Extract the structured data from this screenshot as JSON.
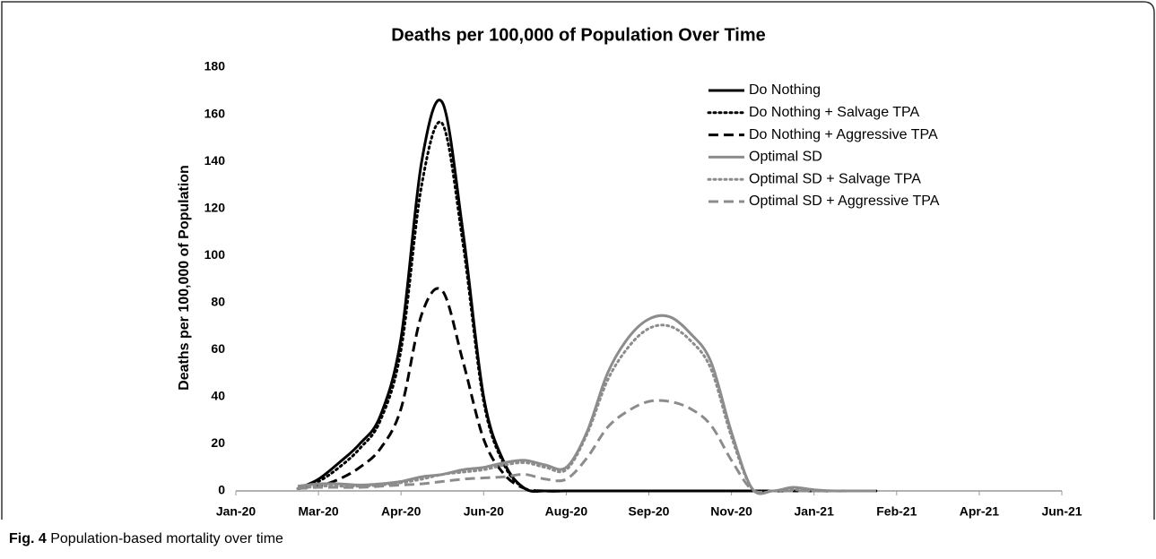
{
  "chart_data": {
    "type": "line",
    "title": "Deaths per 100,000 of Population Over Time",
    "y_label": "Deaths per 100,000 of Population",
    "xlim": [
      0,
      10
    ],
    "xticks": [
      {
        "value": 0,
        "label": "Jan-20"
      },
      {
        "value": 1,
        "label": "Mar-20"
      },
      {
        "value": 2,
        "label": "Apr-20"
      },
      {
        "value": 3,
        "label": "Jun-20"
      },
      {
        "value": 4,
        "label": "Aug-20"
      },
      {
        "value": 5,
        "label": "Sep-20"
      },
      {
        "value": 6,
        "label": "Nov-20"
      },
      {
        "value": 7,
        "label": "Jan-21"
      },
      {
        "value": 8,
        "label": "Feb-21"
      },
      {
        "value": 9,
        "label": "Apr-21"
      },
      {
        "value": 10,
        "label": "Jun-21"
      }
    ],
    "ylim": [
      0,
      180
    ],
    "yticks": [
      0,
      20,
      40,
      60,
      80,
      100,
      120,
      140,
      160,
      180
    ],
    "grid": false,
    "legend": "upper right",
    "x": [
      0.75,
      1,
      1.25,
      1.5,
      1.75,
      2,
      2.25,
      2.5,
      2.75,
      3,
      3.25,
      3.5,
      3.75,
      4,
      4.25,
      4.5,
      4.75,
      5,
      5.25,
      5.5,
      5.75,
      6,
      6.25,
      6.5,
      6.75,
      7,
      7.25,
      7.5,
      7.75
    ],
    "series": [
      {
        "name": "Do Nothing",
        "color": "#000000",
        "dash": "solid",
        "values": [
          1,
          5,
          12,
          20,
          32,
          65,
          140,
          165,
          110,
          40,
          12,
          1,
          0,
          0,
          0,
          0,
          0,
          0,
          0,
          0,
          0,
          0,
          0,
          0,
          0,
          0,
          0,
          0,
          0
        ]
      },
      {
        "name": "Do Nothing + Salvage TPA",
        "color": "#000000",
        "dash": "dotted",
        "values": [
          1,
          4,
          10,
          18,
          30,
          60,
          130,
          156,
          105,
          38,
          11,
          1,
          0,
          0,
          0,
          0,
          0,
          0,
          0,
          0,
          0,
          0,
          0,
          0,
          0,
          0,
          0,
          0,
          0
        ]
      },
      {
        "name": "Do Nothing + Aggressive TPA",
        "color": "#000000",
        "dash": "dashed",
        "values": [
          1,
          2,
          5,
          10,
          18,
          35,
          75,
          85,
          55,
          22,
          7,
          1,
          0,
          0,
          0,
          0,
          0,
          0,
          0,
          0,
          0,
          0,
          0,
          0,
          0,
          0,
          0,
          0,
          0
        ]
      },
      {
        "name": "Optimal SD",
        "color": "#8c8c8c",
        "dash": "solid",
        "values": [
          2,
          3,
          3,
          2.5,
          3,
          4,
          6,
          7,
          9,
          10,
          12,
          13,
          11,
          10,
          25,
          50,
          65,
          73,
          74,
          67,
          55,
          25,
          1,
          0,
          1.5,
          0.5,
          0,
          0,
          0
        ]
      },
      {
        "name": "Optimal SD + Salvage TPA",
        "color": "#8c8c8c",
        "dash": "dotted",
        "values": [
          1,
          2,
          2,
          2,
          2.5,
          3.5,
          5,
          7,
          8,
          9,
          11,
          12,
          10,
          9,
          24,
          47,
          61,
          69,
          70,
          64,
          52,
          23,
          1,
          0,
          0.5,
          0,
          0,
          0,
          0
        ]
      },
      {
        "name": "Optimal SD + Aggressive TPA",
        "color": "#8c8c8c",
        "dash": "dashed",
        "values": [
          1,
          1.5,
          1.5,
          1.5,
          2,
          2.5,
          3,
          4,
          5,
          5.5,
          6,
          7,
          5,
          5,
          14,
          27,
          34,
          38,
          38,
          35,
          28,
          13,
          0.5,
          0,
          0,
          0,
          0,
          0,
          0
        ]
      }
    ]
  },
  "caption": {
    "label": "Fig. 4",
    "text": "Population-based mortality over time"
  }
}
